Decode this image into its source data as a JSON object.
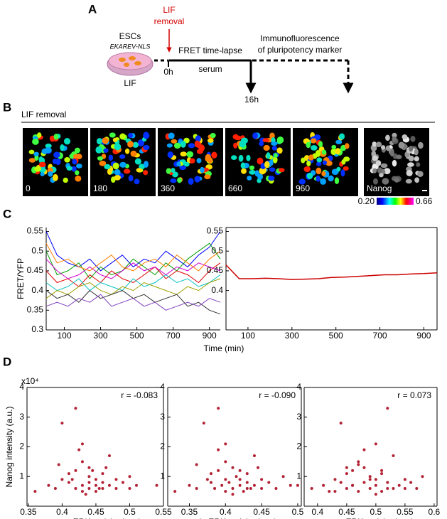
{
  "panel_labels": {
    "a": "A",
    "b": "B",
    "c": "C",
    "d": "D"
  },
  "diagram": {
    "cells": "ESCs",
    "reporter": "EKAREV-NLS",
    "medium": "LIF",
    "event": [
      "LIF",
      "removal"
    ],
    "start": "0h",
    "step1": "FRET time-lapse",
    "step1_medium": "serum",
    "end": "16h",
    "step2": [
      "Immunofluorescence",
      "of pluripotency marker"
    ]
  },
  "images": {
    "header": "LIF removal",
    "frames": [
      "0",
      "180",
      "360",
      "660",
      "960",
      "Nanog"
    ],
    "colorbar": {
      "min": {
        "value": 0.2,
        "label": "0.20"
      },
      "max": {
        "value": 0.66,
        "label": "0.66"
      }
    }
  },
  "chart_data": [
    {
      "type": "line",
      "ylabel": "FRET/YFP",
      "xlabel": "Time (min)",
      "xlim": [
        0,
        960
      ],
      "ylim": [
        0.3,
        0.56
      ],
      "xticks": [
        100,
        300,
        500,
        700,
        900
      ],
      "yticks": [
        0.3,
        0.35,
        0.4,
        0.45,
        0.5,
        0.55
      ],
      "x": [
        0,
        60,
        120,
        180,
        240,
        300,
        360,
        420,
        480,
        540,
        600,
        660,
        720,
        780,
        840,
        900,
        960
      ],
      "series": [
        {
          "color": "#0000ff",
          "values": [
            0.55,
            0.49,
            0.47,
            0.46,
            0.48,
            0.45,
            0.47,
            0.49,
            0.46,
            0.48,
            0.47,
            0.5,
            0.48,
            0.46,
            0.49,
            0.51,
            0.55
          ]
        },
        {
          "color": "#00a000",
          "values": [
            0.5,
            0.44,
            0.45,
            0.47,
            0.43,
            0.46,
            0.44,
            0.45,
            0.48,
            0.46,
            0.44,
            0.47,
            0.45,
            0.48,
            0.5,
            0.52,
            0.48
          ]
        },
        {
          "color": "#e00000",
          "values": [
            0.45,
            0.42,
            0.43,
            0.41,
            0.44,
            0.42,
            0.45,
            0.43,
            0.42,
            0.44,
            0.46,
            0.43,
            0.45,
            0.44,
            0.42,
            0.45,
            0.47
          ]
        },
        {
          "color": "#00c0c0",
          "values": [
            0.42,
            0.4,
            0.41,
            0.43,
            0.4,
            0.42,
            0.41,
            0.4,
            0.43,
            0.41,
            0.42,
            0.44,
            0.42,
            0.43,
            0.41,
            0.42,
            0.44
          ]
        },
        {
          "color": "#d000d0",
          "values": [
            0.48,
            0.45,
            0.43,
            0.44,
            0.46,
            0.44,
            0.43,
            0.45,
            0.47,
            0.45,
            0.46,
            0.44,
            0.46,
            0.45,
            0.47,
            0.46,
            0.45
          ]
        },
        {
          "color": "#a0a000",
          "values": [
            0.38,
            0.4,
            0.39,
            0.41,
            0.42,
            0.4,
            0.39,
            0.41,
            0.4,
            0.42,
            0.41,
            0.4,
            0.39,
            0.41,
            0.4,
            0.42,
            0.43
          ]
        },
        {
          "color": "#333333",
          "values": [
            0.4,
            0.38,
            0.39,
            0.37,
            0.4,
            0.38,
            0.39,
            0.4,
            0.38,
            0.39,
            0.37,
            0.38,
            0.39,
            0.36,
            0.37,
            0.35,
            0.34
          ]
        },
        {
          "color": "#ff8000",
          "values": [
            0.52,
            0.47,
            0.48,
            0.46,
            0.45,
            0.47,
            0.49,
            0.46,
            0.45,
            0.47,
            0.48,
            0.46,
            0.49,
            0.47,
            0.45,
            0.48,
            0.5
          ]
        },
        {
          "color": "#8040c0",
          "values": [
            0.36,
            0.37,
            0.36,
            0.38,
            0.37,
            0.39,
            0.36,
            0.37,
            0.38,
            0.36,
            0.37,
            0.35,
            0.36,
            0.37,
            0.36,
            0.38,
            0.37
          ]
        }
      ]
    },
    {
      "type": "line",
      "xlim": [
        0,
        960
      ],
      "ylim": [
        0.3,
        0.56
      ],
      "xticks": [
        100,
        300,
        500,
        700,
        900
      ],
      "yticks": [
        0.4,
        0.45,
        0.5,
        0.55
      ],
      "x": [
        0,
        60,
        120,
        180,
        240,
        300,
        360,
        420,
        480,
        540,
        600,
        660,
        720,
        780,
        840,
        900,
        960
      ],
      "series": [
        {
          "color": "#cc0000",
          "values": [
            0.465,
            0.43,
            0.43,
            0.431,
            0.43,
            0.428,
            0.429,
            0.43,
            0.433,
            0.434,
            0.436,
            0.438,
            0.44,
            0.44,
            0.442,
            0.443,
            0.445
          ]
        }
      ]
    },
    {
      "type": "scatter",
      "ylabel": "Nanog intensity (a.u.)",
      "yscale_label": "x10⁴",
      "xlabel": "mean ERK activity (a.u.)",
      "annotation": "r = -0.083",
      "color": "#b22234",
      "xlim": [
        0.348,
        0.55
      ],
      "ylim": [
        0,
        4
      ],
      "xticks": [
        0.35,
        0.4,
        0.45,
        0.5,
        0.55
      ],
      "yticks": [
        1,
        2,
        3,
        4
      ],
      "x": [
        0.36,
        0.38,
        0.39,
        0.4,
        0.4,
        0.41,
        0.41,
        0.42,
        0.42,
        0.42,
        0.43,
        0.43,
        0.43,
        0.43,
        0.44,
        0.44,
        0.44,
        0.44,
        0.45,
        0.45,
        0.45,
        0.46,
        0.46,
        0.46,
        0.47,
        0.47,
        0.48,
        0.48,
        0.49,
        0.5,
        0.5,
        0.51,
        0.54,
        0.395,
        0.425,
        0.435,
        0.415,
        0.445,
        0.455,
        0.465
      ],
      "values": [
        0.5,
        0.7,
        0.6,
        2.8,
        0.9,
        0.8,
        1.1,
        0.6,
        1.2,
        3.3,
        0.7,
        2.1,
        1.5,
        0.5,
        0.8,
        1.3,
        0.6,
        1.0,
        0.7,
        0.9,
        0.5,
        1.1,
        0.8,
        0.6,
        1.7,
        0.7,
        0.9,
        0.6,
        0.8,
        0.6,
        1.0,
        0.7,
        0.7,
        1.4,
        1.9,
        0.4,
        0.9,
        1.2,
        0.6,
        1.3
      ]
    },
    {
      "type": "scatter",
      "xlabel": "min ERK activity (a.u.)",
      "annotation": "r = -0.090",
      "color": "#b22234",
      "xlim": [
        0.32,
        0.505
      ],
      "ylim": [
        0,
        4
      ],
      "xticks": [
        0.35,
        0.4,
        0.45,
        0.5
      ],
      "yticks": [
        1,
        2,
        3,
        4
      ],
      "x": [
        0.33,
        0.35,
        0.36,
        0.37,
        0.375,
        0.38,
        0.38,
        0.385,
        0.39,
        0.39,
        0.395,
        0.4,
        0.4,
        0.4,
        0.405,
        0.41,
        0.41,
        0.415,
        0.42,
        0.42,
        0.425,
        0.43,
        0.43,
        0.435,
        0.44,
        0.44,
        0.45,
        0.45,
        0.46,
        0.47,
        0.48,
        0.49,
        0.5,
        0.36,
        0.39,
        0.41,
        0.4,
        0.42,
        0.43,
        0.445
      ],
      "values": [
        0.5,
        0.7,
        0.6,
        2.8,
        0.9,
        0.8,
        1.1,
        0.6,
        1.2,
        3.3,
        0.7,
        2.1,
        1.5,
        0.5,
        0.8,
        1.3,
        0.6,
        1.0,
        0.7,
        0.9,
        0.5,
        1.1,
        0.8,
        0.6,
        1.7,
        0.7,
        0.9,
        0.6,
        0.8,
        0.6,
        1.0,
        0.7,
        0.7,
        1.4,
        1.9,
        0.4,
        0.9,
        1.2,
        0.6,
        1.3
      ]
    },
    {
      "type": "scatter",
      "xlabel": "max ERK activity (a.u.)",
      "annotation": "r = 0.073",
      "color": "#b22234",
      "xlim": [
        0.377,
        0.605
      ],
      "ylim": [
        0,
        4
      ],
      "xticks": [
        0.4,
        0.45,
        0.5,
        0.55,
        0.6
      ],
      "yticks": [
        1,
        2,
        3,
        4
      ],
      "x": [
        0.39,
        0.41,
        0.42,
        0.43,
        0.44,
        0.44,
        0.45,
        0.45,
        0.46,
        0.46,
        0.47,
        0.47,
        0.48,
        0.48,
        0.49,
        0.49,
        0.5,
        0.5,
        0.51,
        0.51,
        0.52,
        0.52,
        0.53,
        0.53,
        0.54,
        0.55,
        0.55,
        0.56,
        0.57,
        0.58,
        0.46,
        0.47,
        0.48,
        0.5,
        0.49,
        0.51,
        0.52,
        0.45,
        0.43,
        0.5
      ],
      "values": [
        0.6,
        0.7,
        0.5,
        0.9,
        0.8,
        2.8,
        1.1,
        0.6,
        1.2,
        0.7,
        1.5,
        0.5,
        0.8,
        1.3,
        0.6,
        1.0,
        0.7,
        0.9,
        0.5,
        1.1,
        3.3,
        0.8,
        0.6,
        1.7,
        0.7,
        0.9,
        0.6,
        0.8,
        0.6,
        1.0,
        0.7,
        1.4,
        1.9,
        0.4,
        0.9,
        1.2,
        0.6,
        1.3,
        0.5,
        2.1
      ]
    }
  ]
}
